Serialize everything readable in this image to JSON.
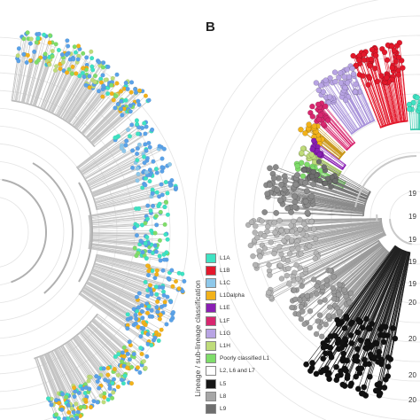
{
  "panel_b_label": "B",
  "legend": {
    "title": "Lineage / sub-lineage classification",
    "items": [
      {
        "label": "L1A",
        "color": "#3fe3c3"
      },
      {
        "label": "L1B",
        "color": "#e3182b"
      },
      {
        "label": "L1C",
        "color": "#8ec8ea"
      },
      {
        "label": "L1Dalpha",
        "color": "#f2b21a"
      },
      {
        "label": "L1E",
        "color": "#8a1fb4"
      },
      {
        "label": "L1F",
        "color": "#d8276f"
      },
      {
        "label": "L1G",
        "color": "#b8a4e4"
      },
      {
        "label": "L1H",
        "color": "#bfdc7a"
      },
      {
        "label": "Poorly classified L1",
        "color": "#7fdd6a"
      },
      {
        "label": "L2, L6 and L7",
        "color": "#ffffff"
      },
      {
        "label": "L5",
        "color": "#161616"
      },
      {
        "label": "L8",
        "color": "#a6a6a6"
      },
      {
        "label": "L9",
        "color": "#6e6e6e"
      }
    ]
  },
  "year_axis": [
    "19",
    "19",
    "19",
    "19",
    "19",
    "20",
    "20",
    "20",
    "20"
  ]
}
